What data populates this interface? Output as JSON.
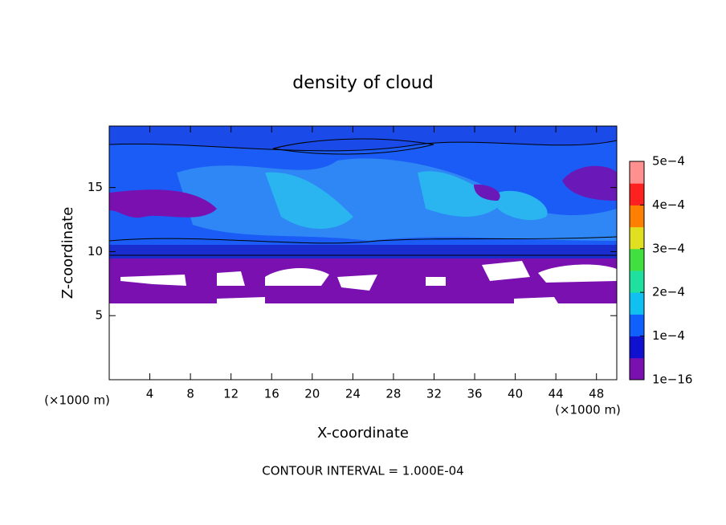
{
  "chart_data": {
    "type": "contour",
    "title": "density of cloud",
    "xlabel": "X-coordinate",
    "ylabel": "Z-coordinate",
    "xunit": "(×1000 m)",
    "yunit": "(×1000 m)",
    "footnote": "CONTOUR INTERVAL = 1.000E-04",
    "xlim": [
      0,
      50
    ],
    "xticks": [
      4,
      8,
      12,
      16,
      20,
      24,
      28,
      32,
      36,
      40,
      44,
      48
    ],
    "ylim": [
      0,
      19.8
    ],
    "yticks": [
      5,
      10,
      15
    ],
    "colorbar": {
      "lim": [
        1e-16,
        0.0005
      ],
      "ticks": [
        {
          "value": 1e-16,
          "label": "1e−16"
        },
        {
          "value": 0.0001,
          "label": "1e−4"
        },
        {
          "value": 0.0002,
          "label": "2e−4"
        },
        {
          "value": 0.0003,
          "label": "3e−4"
        },
        {
          "value": 0.0004,
          "label": "4e−4"
        },
        {
          "value": 0.0005,
          "label": "5e−4"
        }
      ],
      "colors": [
        "#7a10b0",
        "#1010d0",
        "#1060ff",
        "#10c0f0",
        "#20e0a0",
        "#40e040",
        "#e0e020",
        "#ff8000",
        "#ff2020",
        "#ff9090"
      ]
    }
  }
}
